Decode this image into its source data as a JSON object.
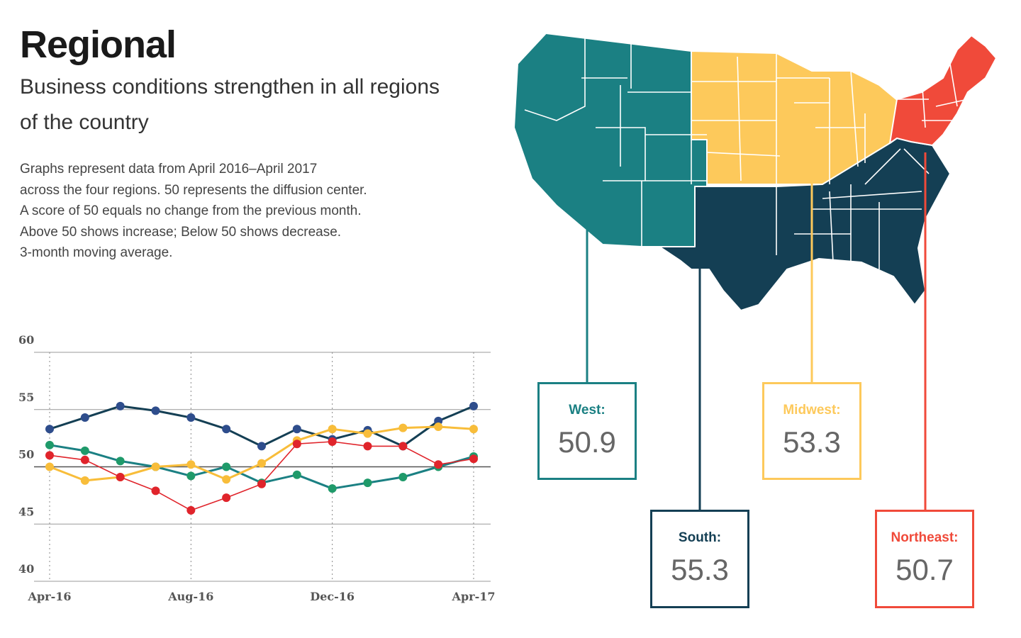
{
  "header": {
    "title": "Regional",
    "subtitle": "Business conditions strengthen in all regions of the country",
    "description_lines": [
      "Graphs represent data from April 2016–April 2017",
      "across the four regions. 50 represents the diffusion center.",
      "A score of 50 equals no change from the previous month.",
      "Above 50 shows increase; Below 50 shows decrease.",
      "3-month moving average."
    ]
  },
  "colors": {
    "west": "#1b8083",
    "south": "#143f54",
    "midwest": "#fdc95b",
    "northeast": "#f04a3a",
    "chart_south": "#2e4d8c",
    "chart_west": "#1f9a6a",
    "chart_midwest": "#f8bd3a",
    "chart_northeast": "#e0242b"
  },
  "chart_data": {
    "type": "line",
    "title": "",
    "xlabel": "",
    "ylabel": "",
    "x_tick_labels": [
      "Apr-16",
      "Aug-16",
      "Dec-16",
      "Apr-17"
    ],
    "y_tick_labels": [
      "60",
      "55",
      "50",
      "45",
      "40"
    ],
    "ylim": [
      40,
      60
    ],
    "grid": true,
    "x": [
      "Apr-16",
      "May-16",
      "Jun-16",
      "Jul-16",
      "Aug-16",
      "Sep-16",
      "Oct-16",
      "Nov-16",
      "Dec-16",
      "Jan-17",
      "Feb-17",
      "Mar-17",
      "Apr-17"
    ],
    "series": [
      {
        "region": "south",
        "values": [
          53.3,
          54.3,
          55.3,
          54.9,
          54.3,
          53.3,
          51.8,
          53.3,
          52.4,
          53.2,
          51.8,
          54.0,
          55.3
        ]
      },
      {
        "region": "west",
        "values": [
          51.9,
          51.4,
          50.5,
          50.0,
          49.2,
          50.0,
          48.6,
          49.3,
          48.1,
          48.6,
          49.1,
          50.0,
          50.9
        ]
      },
      {
        "region": "midwest",
        "values": [
          50.0,
          48.8,
          49.1,
          50.0,
          50.2,
          48.9,
          50.3,
          52.3,
          53.3,
          52.9,
          53.4,
          53.5,
          53.3
        ]
      },
      {
        "region": "northeast",
        "values": [
          51.0,
          50.6,
          49.1,
          47.9,
          46.2,
          47.3,
          48.5,
          52.0,
          52.2,
          51.8,
          51.8,
          50.2,
          50.7
        ]
      }
    ]
  },
  "regions": {
    "west": {
      "label": "West:",
      "value": "50.9"
    },
    "south": {
      "label": "South:",
      "value": "55.3"
    },
    "midwest": {
      "label": "Midwest:",
      "value": "53.3"
    },
    "northeast": {
      "label": "Northeast:",
      "value": "50.7"
    }
  }
}
